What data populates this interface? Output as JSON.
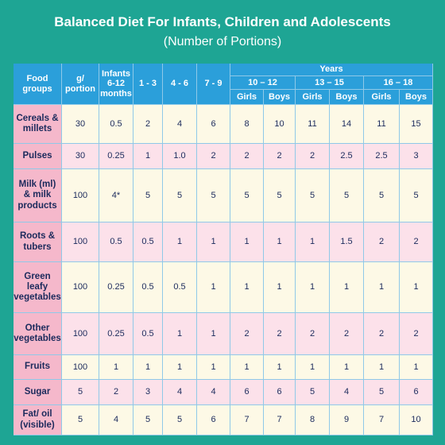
{
  "header": {
    "title": "Balanced Diet For Infants, Children and Adolescents",
    "subtitle": "(Number of Portions)"
  },
  "table": {
    "columns": [
      "Food groups",
      "g/ portion",
      "Infants 6-12 months",
      "1 - 3",
      "4 - 6",
      "7 - 9"
    ],
    "years": "Years",
    "age_groups": [
      "10 – 12",
      "13 – 15",
      "16 – 18"
    ],
    "sexes": [
      "Girls",
      "Boys",
      "Girls",
      "Boys",
      "Girls",
      "Boys"
    ],
    "rows": [
      {
        "label": "Cereals & millets",
        "cells": [
          "30",
          "0.5",
          "2",
          "4",
          "6",
          "8",
          "10",
          "11",
          "14",
          "11",
          "15"
        ]
      },
      {
        "label": "Pulses",
        "cells": [
          "30",
          "0.25",
          "1",
          "1.0",
          "2",
          "2",
          "2",
          "2",
          "2.5",
          "2.5",
          "3"
        ]
      },
      {
        "label": "Milk (ml) & milk products",
        "cells": [
          "100",
          "4*",
          "5",
          "5",
          "5",
          "5",
          "5",
          "5",
          "5",
          "5",
          "5"
        ]
      },
      {
        "label": "Roots & tubers",
        "cells": [
          "100",
          "0.5",
          "0.5",
          "1",
          "1",
          "1",
          "1",
          "1",
          "1.5",
          "2",
          "2"
        ]
      },
      {
        "label": "Green leafy vegetables",
        "cells": [
          "100",
          "0.25",
          "0.5",
          "0.5",
          "1",
          "1",
          "1",
          "1",
          "1",
          "1",
          "1"
        ]
      },
      {
        "label": "Other vegetables",
        "cells": [
          "100",
          "0.25",
          "0.5",
          "1",
          "1",
          "2",
          "2",
          "2",
          "2",
          "2",
          "2"
        ]
      },
      {
        "label": "Fruits",
        "cells": [
          "100",
          "1",
          "1",
          "1",
          "1",
          "1",
          "1",
          "1",
          "1",
          "1",
          "1"
        ]
      },
      {
        "label": "Sugar",
        "cells": [
          "5",
          "2",
          "3",
          "4",
          "4",
          "6",
          "6",
          "5",
          "4",
          "5",
          "6"
        ]
      },
      {
        "label": "Fat/ oil (visible)",
        "cells": [
          "5",
          "4",
          "5",
          "5",
          "6",
          "7",
          "7",
          "8",
          "9",
          "7",
          "10"
        ]
      }
    ]
  }
}
